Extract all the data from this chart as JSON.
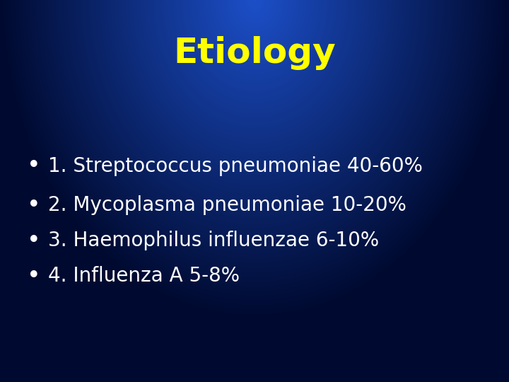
{
  "title": "Etiology",
  "title_color": "#FFFF00",
  "title_fontsize": 36,
  "title_fontweight": "bold",
  "bullet_items": [
    "1. Streptococcus pneumoniae 40-60%",
    "2. Mycoplasma pneumoniae 10-20%",
    "3. Haemophilus influenzae 6-10%",
    "4. Influenza A 5-8%"
  ],
  "bullet_color": "#FFFFFF",
  "bullet_fontsize": 20,
  "bullet_marker": "•",
  "fig_width": 7.2,
  "fig_height": 5.4,
  "dpi": 100
}
